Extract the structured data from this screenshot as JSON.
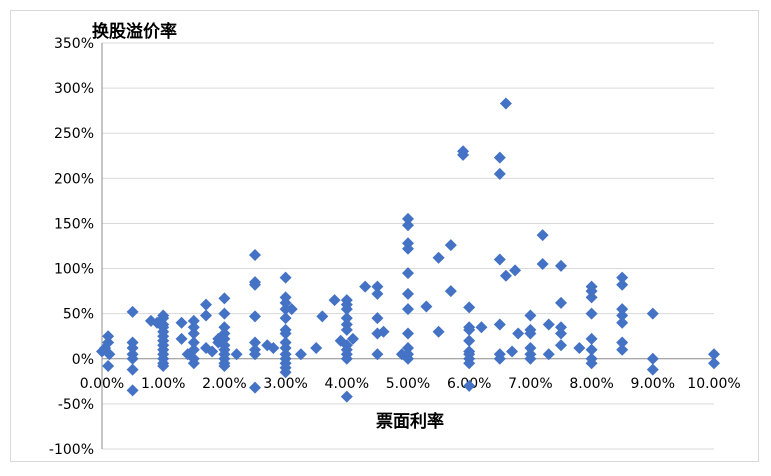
{
  "chart_data": {
    "type": "scatter",
    "title": "",
    "ylabel": "换股溢价率",
    "xlabel": "票面利率",
    "xlim": [
      0,
      10
    ],
    "ylim": [
      -100,
      350
    ],
    "x_tick_labels": [
      "0.00%",
      "1.00%",
      "2.00%",
      "3.00%",
      "4.00%",
      "5.00%",
      "6.00%",
      "7.00%",
      "8.00%",
      "9.00%",
      "10.00%"
    ],
    "y_tick_labels": [
      "-100%",
      "-50%",
      "0%",
      "50%",
      "100%",
      "150%",
      "200%",
      "250%",
      "300%",
      "350%"
    ],
    "grid": "horizontal",
    "marker": "diamond",
    "marker_color": "#4472C4",
    "points": [
      [
        0.0,
        8
      ],
      [
        0.05,
        12
      ],
      [
        0.1,
        18
      ],
      [
        0.1,
        25
      ],
      [
        0.1,
        -8
      ],
      [
        0.12,
        5
      ],
      [
        0.5,
        52
      ],
      [
        0.5,
        18
      ],
      [
        0.5,
        12
      ],
      [
        0.5,
        5
      ],
      [
        0.5,
        0
      ],
      [
        0.5,
        -12
      ],
      [
        0.5,
        -35
      ],
      [
        0.8,
        42
      ],
      [
        0.9,
        40
      ],
      [
        1.0,
        48
      ],
      [
        1.0,
        45
      ],
      [
        1.0,
        38
      ],
      [
        1.0,
        35
      ],
      [
        1.0,
        30
      ],
      [
        1.0,
        25
      ],
      [
        1.0,
        20
      ],
      [
        1.0,
        15
      ],
      [
        1.0,
        10
      ],
      [
        1.0,
        5
      ],
      [
        1.0,
        0
      ],
      [
        1.0,
        -5
      ],
      [
        1.0,
        -8
      ],
      [
        1.3,
        40
      ],
      [
        1.3,
        22
      ],
      [
        1.4,
        5
      ],
      [
        1.5,
        42
      ],
      [
        1.5,
        35
      ],
      [
        1.5,
        28
      ],
      [
        1.5,
        18
      ],
      [
        1.5,
        10
      ],
      [
        1.5,
        0
      ],
      [
        1.5,
        -5
      ],
      [
        1.7,
        60
      ],
      [
        1.7,
        48
      ],
      [
        1.7,
        12
      ],
      [
        1.8,
        8
      ],
      [
        1.9,
        22
      ],
      [
        1.9,
        18
      ],
      [
        2.0,
        67
      ],
      [
        2.0,
        50
      ],
      [
        2.0,
        35
      ],
      [
        2.0,
        28
      ],
      [
        2.0,
        22
      ],
      [
        2.0,
        15
      ],
      [
        2.0,
        10
      ],
      [
        2.0,
        5
      ],
      [
        2.0,
        0
      ],
      [
        2.0,
        -5
      ],
      [
        2.0,
        -8
      ],
      [
        2.2,
        5
      ],
      [
        2.5,
        115
      ],
      [
        2.5,
        85
      ],
      [
        2.5,
        82
      ],
      [
        2.5,
        47
      ],
      [
        2.5,
        18
      ],
      [
        2.5,
        10
      ],
      [
        2.5,
        5
      ],
      [
        2.5,
        -32
      ],
      [
        2.7,
        15
      ],
      [
        2.8,
        12
      ],
      [
        3.0,
        90
      ],
      [
        3.0,
        68
      ],
      [
        3.0,
        62
      ],
      [
        3.0,
        55
      ],
      [
        3.0,
        45
      ],
      [
        3.0,
        32
      ],
      [
        3.0,
        28
      ],
      [
        3.0,
        18
      ],
      [
        3.0,
        12
      ],
      [
        3.0,
        5
      ],
      [
        3.0,
        0
      ],
      [
        3.0,
        -5
      ],
      [
        3.0,
        -10
      ],
      [
        3.0,
        -15
      ],
      [
        3.1,
        55
      ],
      [
        3.25,
        5
      ],
      [
        3.5,
        12
      ],
      [
        3.6,
        47
      ],
      [
        3.8,
        65
      ],
      [
        3.9,
        20
      ],
      [
        4.0,
        65
      ],
      [
        4.0,
        60
      ],
      [
        4.0,
        55
      ],
      [
        4.0,
        45
      ],
      [
        4.0,
        38
      ],
      [
        4.0,
        32
      ],
      [
        4.0,
        15
      ],
      [
        4.0,
        10
      ],
      [
        4.0,
        5
      ],
      [
        4.0,
        0
      ],
      [
        4.0,
        -42
      ],
      [
        4.1,
        22
      ],
      [
        4.3,
        80
      ],
      [
        4.5,
        80
      ],
      [
        4.5,
        72
      ],
      [
        4.5,
        45
      ],
      [
        4.5,
        28
      ],
      [
        4.5,
        5
      ],
      [
        4.6,
        30
      ],
      [
        4.9,
        5
      ],
      [
        5.0,
        155
      ],
      [
        5.0,
        148
      ],
      [
        5.0,
        128
      ],
      [
        5.0,
        122
      ],
      [
        5.0,
        95
      ],
      [
        5.0,
        72
      ],
      [
        5.0,
        55
      ],
      [
        5.0,
        28
      ],
      [
        5.0,
        12
      ],
      [
        5.0,
        5
      ],
      [
        5.0,
        0
      ],
      [
        5.3,
        58
      ],
      [
        5.5,
        112
      ],
      [
        5.5,
        30
      ],
      [
        5.7,
        126
      ],
      [
        5.7,
        75
      ],
      [
        5.9,
        230
      ],
      [
        5.9,
        226
      ],
      [
        6.0,
        57
      ],
      [
        6.0,
        35
      ],
      [
        6.0,
        32
      ],
      [
        6.0,
        20
      ],
      [
        6.0,
        8
      ],
      [
        6.0,
        5
      ],
      [
        6.0,
        0
      ],
      [
        6.0,
        -5
      ],
      [
        6.0,
        -30
      ],
      [
        6.2,
        35
      ],
      [
        6.5,
        223
      ],
      [
        6.5,
        205
      ],
      [
        6.5,
        110
      ],
      [
        6.5,
        38
      ],
      [
        6.5,
        5
      ],
      [
        6.5,
        0
      ],
      [
        6.6,
        283
      ],
      [
        6.6,
        92
      ],
      [
        6.7,
        8
      ],
      [
        6.75,
        98
      ],
      [
        6.8,
        28
      ],
      [
        7.0,
        48
      ],
      [
        7.0,
        32
      ],
      [
        7.0,
        28
      ],
      [
        7.0,
        12
      ],
      [
        7.0,
        5
      ],
      [
        7.0,
        0
      ],
      [
        7.2,
        137
      ],
      [
        7.2,
        105
      ],
      [
        7.3,
        38
      ],
      [
        7.3,
        5
      ],
      [
        7.5,
        103
      ],
      [
        7.5,
        62
      ],
      [
        7.5,
        35
      ],
      [
        7.5,
        28
      ],
      [
        7.5,
        15
      ],
      [
        7.8,
        12
      ],
      [
        8.0,
        80
      ],
      [
        8.0,
        75
      ],
      [
        8.0,
        68
      ],
      [
        8.0,
        50
      ],
      [
        8.0,
        22
      ],
      [
        8.0,
        10
      ],
      [
        8.0,
        0
      ],
      [
        8.0,
        -5
      ],
      [
        8.5,
        90
      ],
      [
        8.5,
        82
      ],
      [
        8.5,
        55
      ],
      [
        8.5,
        48
      ],
      [
        8.5,
        40
      ],
      [
        8.5,
        18
      ],
      [
        8.5,
        10
      ],
      [
        9.0,
        50
      ],
      [
        9.0,
        0
      ],
      [
        9.0,
        -12
      ],
      [
        10.0,
        5
      ],
      [
        10.0,
        -5
      ]
    ]
  }
}
